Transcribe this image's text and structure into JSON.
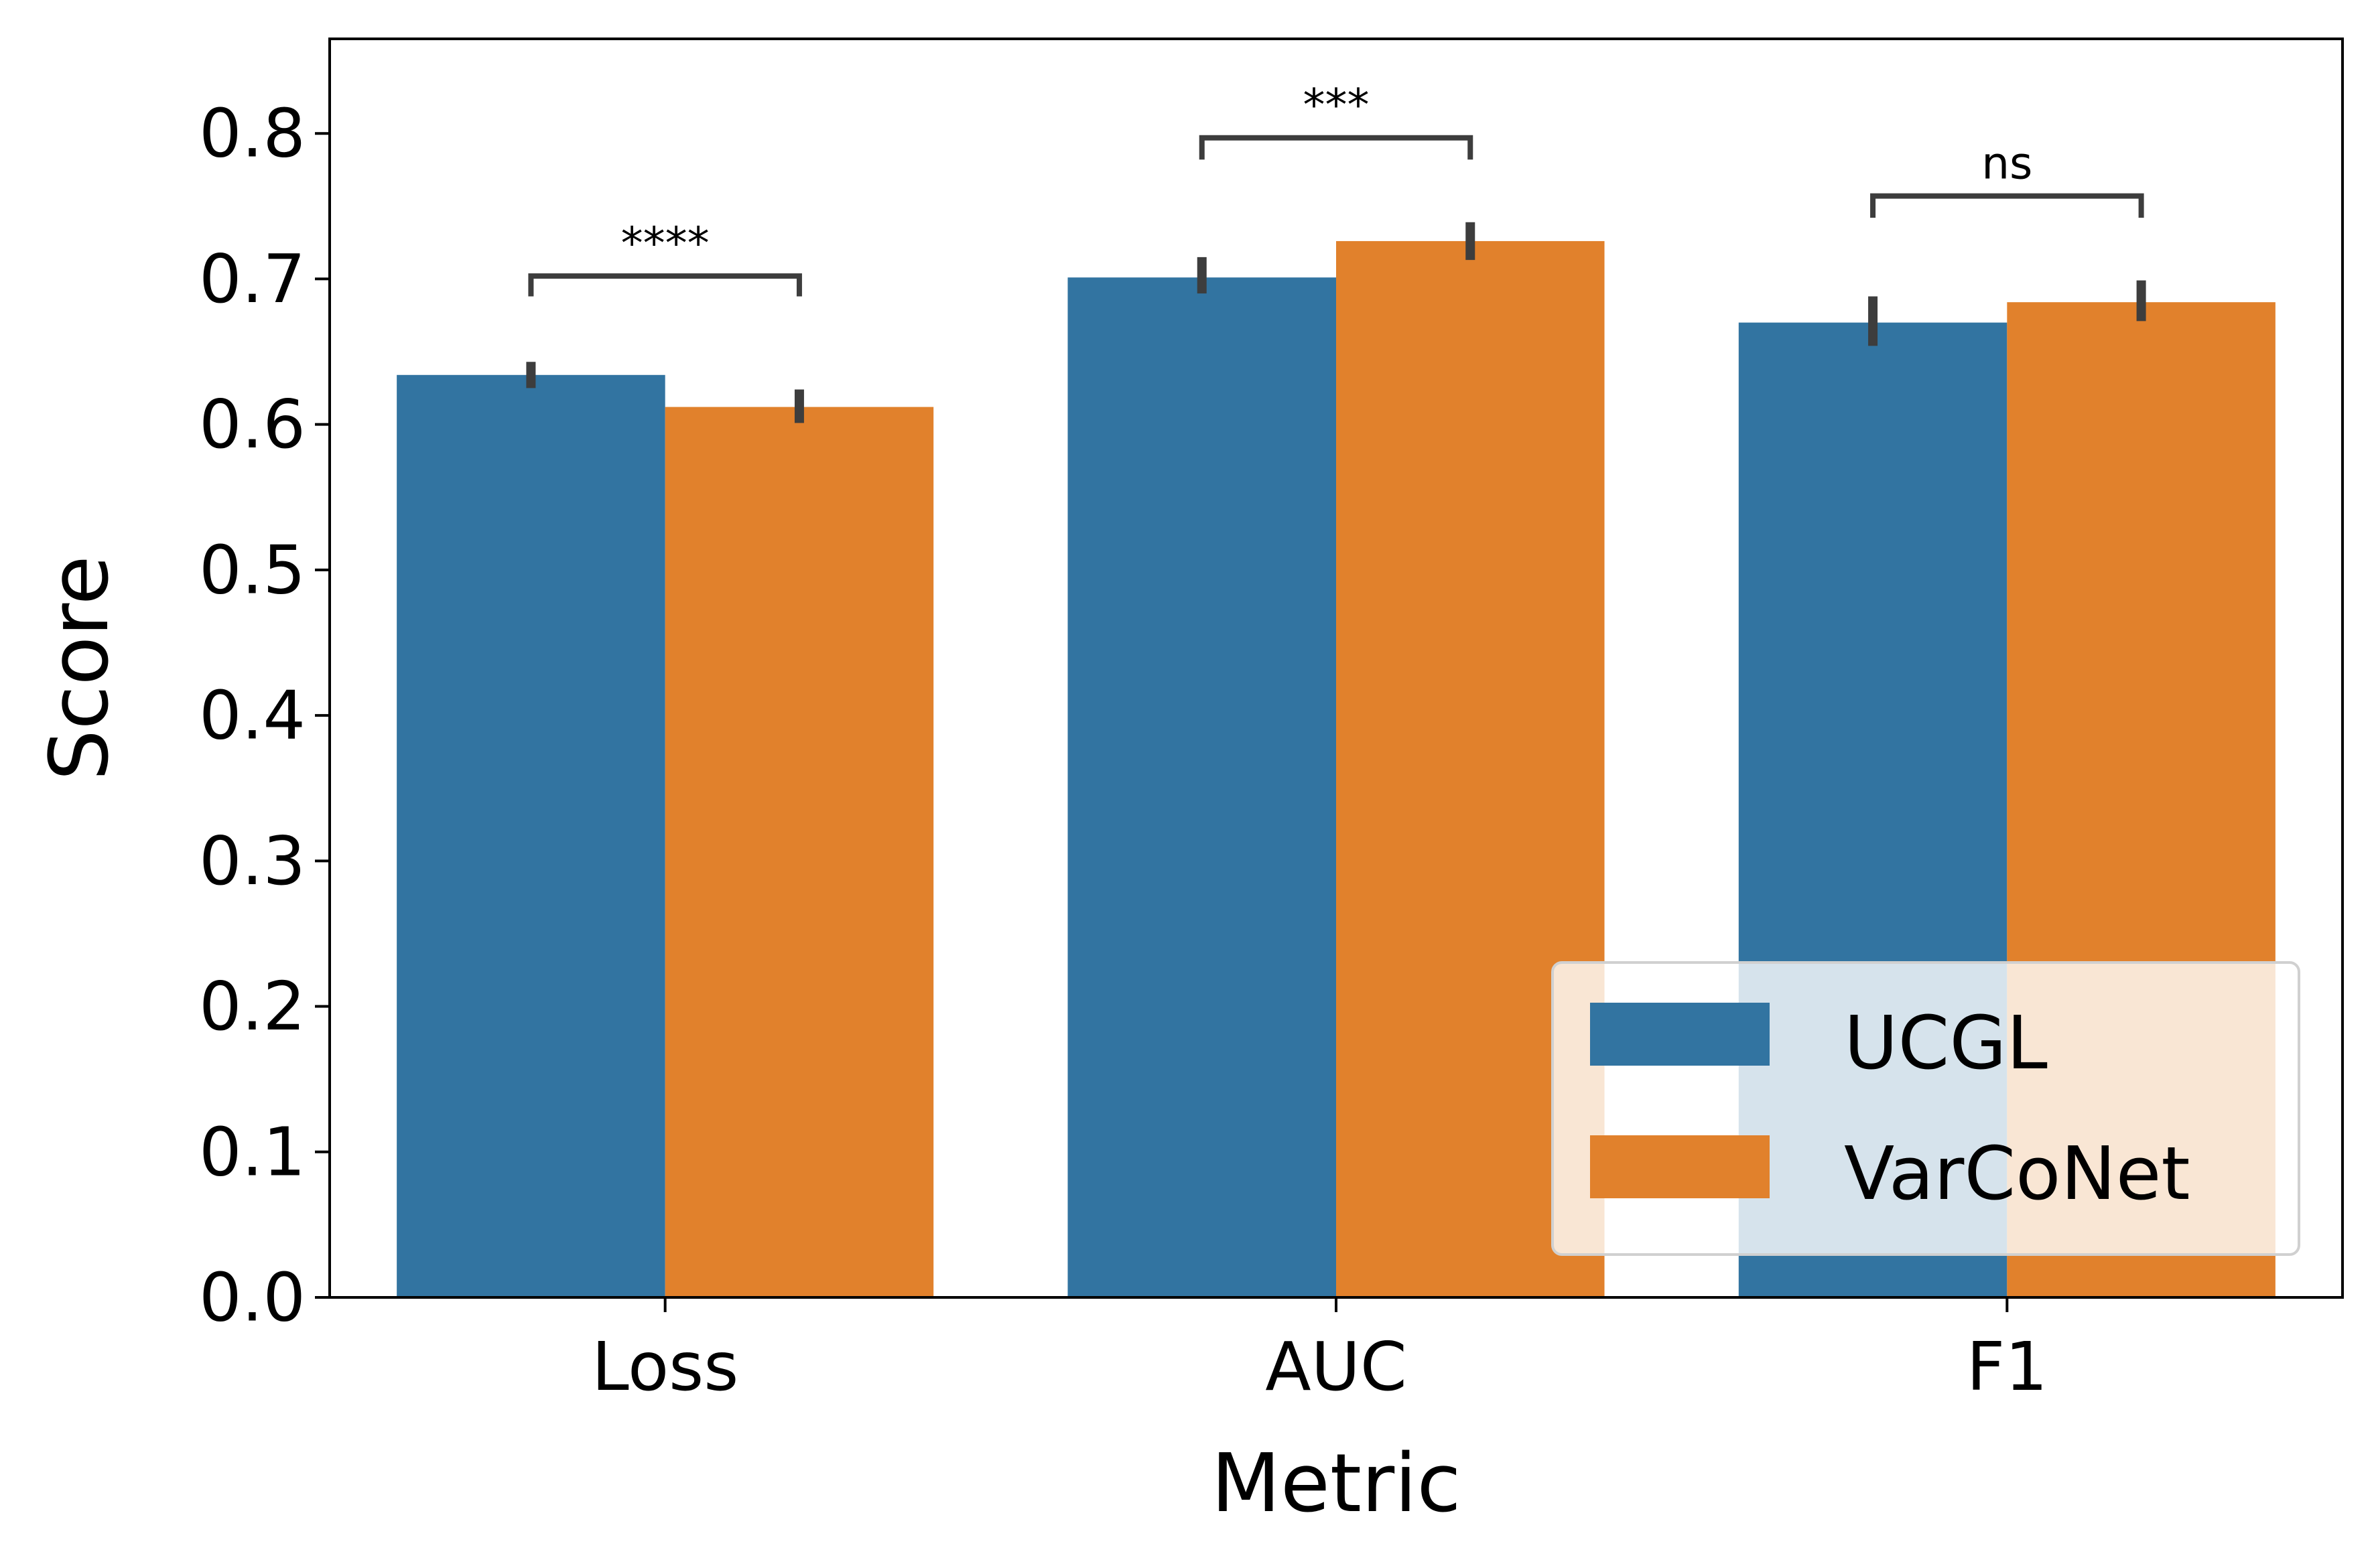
{
  "chart_data": {
    "type": "bar",
    "categories": [
      "Loss",
      "AUC",
      "F1"
    ],
    "series": [
      {
        "name": "UCGL",
        "color": "#3274a1",
        "values": [
          0.634,
          0.701,
          0.67
        ],
        "err_low": [
          0.625,
          0.69,
          0.654
        ],
        "err_high": [
          0.643,
          0.715,
          0.688
        ]
      },
      {
        "name": "VarCoNet",
        "color": "#e1812c",
        "values": [
          0.612,
          0.726,
          0.684
        ],
        "err_low": [
          0.601,
          0.713,
          0.671
        ],
        "err_high": [
          0.624,
          0.739,
          0.699
        ]
      }
    ],
    "xlabel": "Metric",
    "ylabel": "Score",
    "ylim": [
      0,
      0.865
    ],
    "yticks": [
      "0.0",
      "0.1",
      "0.2",
      "0.3",
      "0.4",
      "0.5",
      "0.6",
      "0.7",
      "0.8"
    ],
    "legend": {
      "position": "lower-right",
      "labels": [
        "UCGL",
        "VarCoNet"
      ]
    },
    "annotations": [
      {
        "category": "Loss",
        "text": "****",
        "line_y": 0.702,
        "drop_to_y": 0.688
      },
      {
        "category": "AUC",
        "text": "***",
        "line_y": 0.797,
        "drop_to_y": 0.782
      },
      {
        "category": "F1",
        "text": "ns",
        "line_y": 0.757,
        "drop_to_y": 0.742
      }
    ],
    "grid": false
  }
}
